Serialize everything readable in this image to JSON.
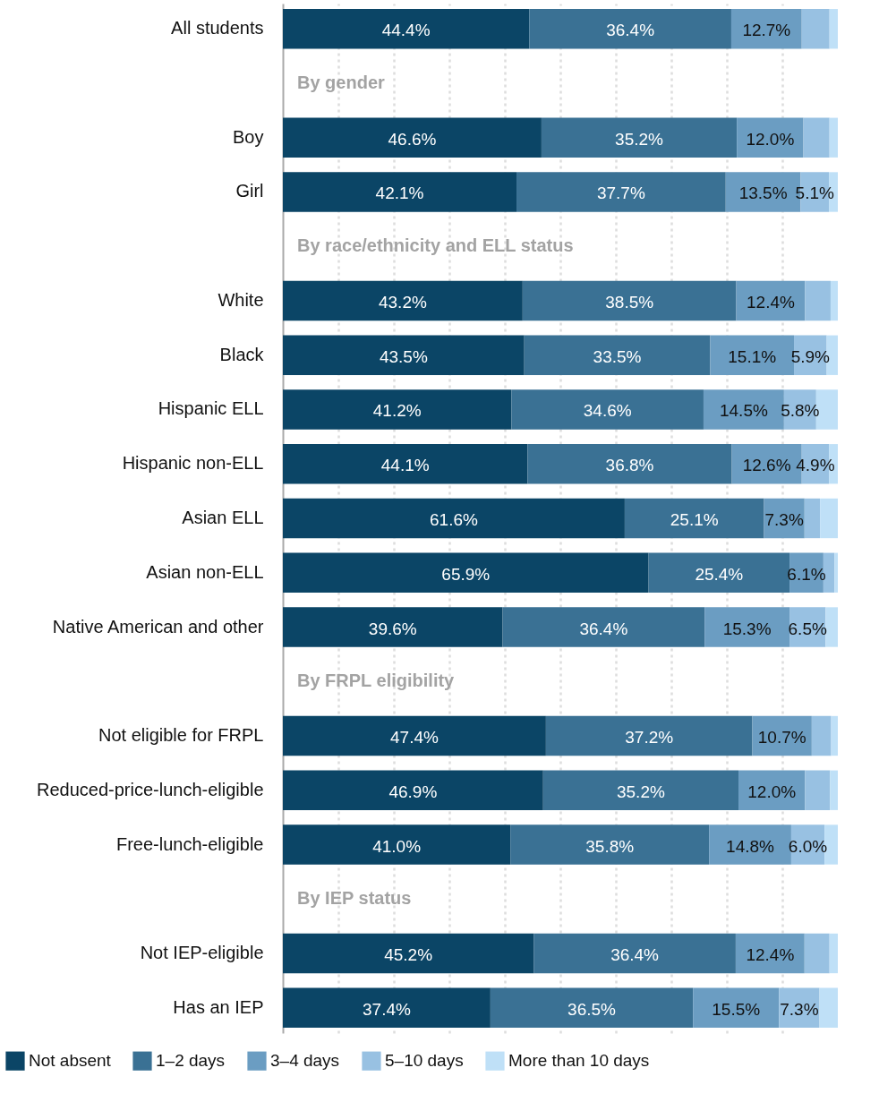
{
  "chart_data": {
    "type": "bar",
    "orientation": "horizontal",
    "stacked": true,
    "categories": [
      "All students",
      "By gender",
      "Boy",
      "Girl",
      "By race/ethnicity and ELL status",
      "White",
      "Black",
      "Hispanic ELL",
      "Hispanic non-ELL",
      "Asian ELL",
      "Asian non-ELL",
      "Native American and other",
      "By FRPL eligibility",
      "Not eligible for FRPL",
      "Reduced-price-lunch-eligible",
      "Free-lunch-eligible",
      "By IEP status",
      "Not IEP-eligible",
      "Has an IEP"
    ],
    "series": [
      {
        "name": "Not absent",
        "color": "#0b4566",
        "values": [
          44.4,
          null,
          46.6,
          42.1,
          null,
          43.2,
          43.5,
          41.2,
          44.1,
          61.6,
          65.9,
          39.6,
          null,
          47.4,
          46.9,
          41.0,
          null,
          45.2,
          37.4
        ],
        "value_labels": [
          "44.4%",
          null,
          "46.6%",
          "42.1%",
          null,
          "43.2%",
          "43.5%",
          "41.2%",
          "44.1%",
          "61.6%",
          "65.9%",
          "39.6%",
          null,
          "47.4%",
          "46.9%",
          "41.0%",
          null,
          "45.2%",
          "37.4%"
        ]
      },
      {
        "name": "1–2 days",
        "color": "#3a7194",
        "values": [
          36.4,
          null,
          35.2,
          37.7,
          null,
          38.5,
          33.5,
          34.6,
          36.8,
          25.1,
          25.4,
          36.4,
          null,
          37.2,
          35.2,
          35.8,
          null,
          36.4,
          36.5
        ],
        "value_labels": [
          "36.4%",
          null,
          "35.2%",
          "37.7%",
          null,
          "38.5%",
          "33.5%",
          "34.6%",
          "36.8%",
          "25.1%",
          "25.4%",
          "36.4%",
          null,
          "37.2%",
          "35.2%",
          "35.8%",
          null,
          "36.4%",
          "36.5%"
        ]
      },
      {
        "name": "3–4 days",
        "color": "#6b9dc2",
        "values": [
          12.7,
          null,
          12.0,
          13.5,
          null,
          12.4,
          15.1,
          14.5,
          12.6,
          7.3,
          6.1,
          15.3,
          null,
          10.7,
          12.0,
          14.8,
          null,
          12.4,
          15.5
        ],
        "value_labels": [
          "12.7%",
          null,
          "12.0%",
          "13.5%",
          null,
          "12.4%",
          "15.1%",
          "14.5%",
          "12.6%",
          "7.3%",
          "6.1%",
          "15.3%",
          null,
          "10.7%",
          "12.0%",
          "14.8%",
          null,
          "12.4%",
          "15.5%"
        ]
      },
      {
        "name": "5–10 days",
        "color": "#98c1e2",
        "values": [
          5.0,
          null,
          4.7,
          5.1,
          null,
          4.6,
          5.9,
          5.8,
          4.9,
          2.8,
          2.0,
          6.5,
          null,
          3.5,
          4.5,
          6.0,
          null,
          4.5,
          7.3
        ],
        "value_labels": [
          null,
          null,
          null,
          "5.1%",
          null,
          null,
          "5.9%",
          "5.8%",
          "4.9%",
          null,
          null,
          "6.5%",
          null,
          null,
          null,
          "6.0%",
          null,
          null,
          "7.3%"
        ]
      },
      {
        "name": "More than 10 days",
        "color": "#bfe0f7",
        "values": [
          1.5,
          null,
          1.5,
          1.6,
          null,
          1.3,
          2.0,
          3.9,
          1.6,
          3.2,
          0.6,
          2.2,
          null,
          1.2,
          1.4,
          2.4,
          null,
          1.5,
          3.3
        ],
        "value_labels": [
          null,
          null,
          null,
          null,
          null,
          null,
          null,
          null,
          null,
          null,
          null,
          null,
          null,
          null,
          null,
          null,
          null,
          null,
          null
        ]
      }
    ],
    "xlim": [
      0,
      100
    ],
    "xticks": [
      {
        "value": 10,
        "label": null
      },
      {
        "value": 20,
        "label": null
      },
      {
        "value": 30,
        "label": null
      },
      {
        "value": 40,
        "label": null
      },
      {
        "value": 50,
        "label": null
      },
      {
        "value": 60,
        "label": null
      },
      {
        "value": 70,
        "label": null
      },
      {
        "value": 80,
        "label": null
      },
      {
        "value": 90,
        "label": null
      }
    ],
    "grid": "x",
    "tick_labels": "y",
    "legend": "bottom"
  }
}
